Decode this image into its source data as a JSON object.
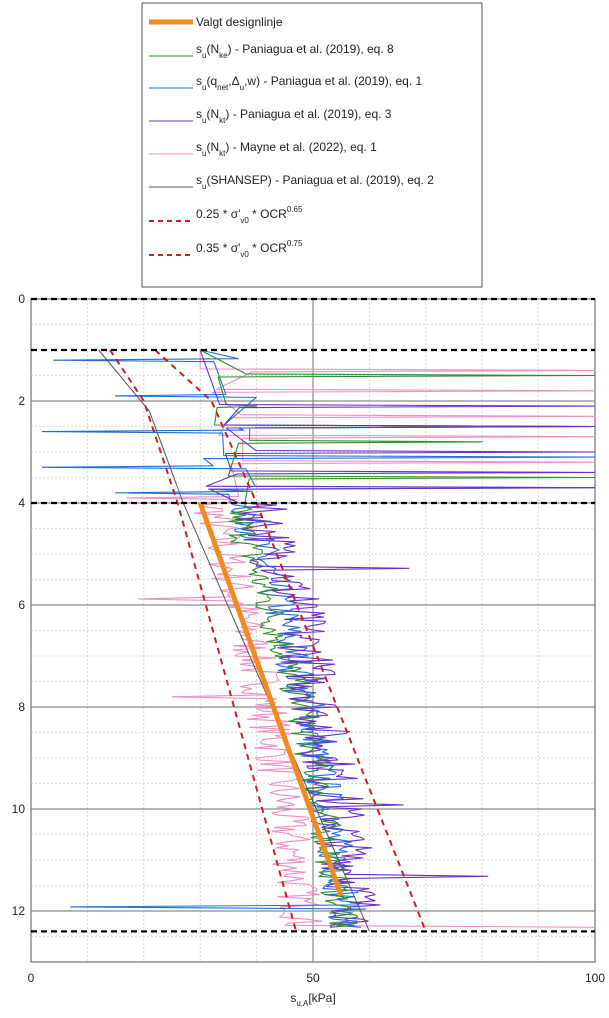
{
  "chart_data": {
    "type": "line",
    "orientation": "depth-down",
    "xlabel": "s",
    "xlabel_sub": "u,A",
    "xlabel_unit": "[kPa]",
    "ylabel": "",
    "xlim": [
      0,
      100
    ],
    "ylim": [
      0,
      13
    ],
    "x_ticks": [
      "0",
      "50",
      "100"
    ],
    "y_ticks": [
      "0",
      "2",
      "4",
      "6",
      "8",
      "10",
      "12"
    ],
    "grid": true,
    "legend_position": "top-center",
    "layer_boundaries": [
      0,
      1.0,
      4.0,
      12.4
    ],
    "legend": [
      {
        "key": "design",
        "color": "#f28a1f",
        "style": "thick",
        "parts": [
          {
            "t": "Valgt designlinje"
          }
        ]
      },
      {
        "key": "nke",
        "color": "#2f8f2f",
        "style": "solid",
        "parts": [
          {
            "t": "s"
          },
          {
            "t": "u",
            "sub": true
          },
          {
            "t": "(N"
          },
          {
            "t": "ke",
            "sub": true
          },
          {
            "t": ") - Paniagua et al. (2019), eq. 8"
          }
        ]
      },
      {
        "key": "qnet",
        "color": "#1f6fd6",
        "style": "solid",
        "parts": [
          {
            "t": "s"
          },
          {
            "t": "u",
            "sub": true
          },
          {
            "t": "(q"
          },
          {
            "t": "net",
            "sub": true
          },
          {
            "t": ","
          },
          {
            "t": "Δ"
          },
          {
            "t": "u",
            "sub": true
          },
          {
            "t": ",w) - Paniagua et al. (2019), eq. 1"
          }
        ]
      },
      {
        "key": "nkt_p",
        "color": "#6b2fc9",
        "style": "solid",
        "parts": [
          {
            "t": "s"
          },
          {
            "t": "u",
            "sub": true
          },
          {
            "t": "(N"
          },
          {
            "t": "kt",
            "sub": true
          },
          {
            "t": ") - Paniagua et al. (2019), eq. 3"
          }
        ]
      },
      {
        "key": "nkt_m",
        "color": "#ef8fc4",
        "style": "solid",
        "parts": [
          {
            "t": "s"
          },
          {
            "t": "u",
            "sub": true
          },
          {
            "t": "(N"
          },
          {
            "t": "kt",
            "sub": true
          },
          {
            "t": ") - Mayne et al. (2022), eq. 1"
          }
        ]
      },
      {
        "key": "shansep",
        "color": "#555555",
        "style": "solid",
        "parts": [
          {
            "t": "s"
          },
          {
            "t": "u",
            "sub": true
          },
          {
            "t": "(SHANSEP) - Paniagua et al. (2019), eq. 2"
          }
        ]
      },
      {
        "key": "low",
        "color": "#cc1f1f",
        "style": "dashed",
        "parts": [
          {
            "t": "0.25 * σ'"
          },
          {
            "t": "v0",
            "sub": true
          },
          {
            "t": " * OCR"
          },
          {
            "t": "0.65",
            "sup": true
          }
        ]
      },
      {
        "key": "high",
        "color": "#cc1f1f",
        "style": "dashed",
        "parts": [
          {
            "t": "0.35 * σ'"
          },
          {
            "t": "v0",
            "sub": true
          },
          {
            "t": " * OCR"
          },
          {
            "t": "0.75",
            "sup": true
          }
        ]
      }
    ],
    "series": [
      {
        "key": "design",
        "color": "#f28a1f",
        "width": 5,
        "dash": "",
        "x": [
          30,
          55
        ],
        "y": [
          4.0,
          11.7
        ]
      },
      {
        "key": "low",
        "color": "#cc1f1f",
        "width": 2,
        "dash": "6,5",
        "x": [
          14,
          20,
          26,
          47
        ],
        "y": [
          1.0,
          2.0,
          4.0,
          12.4
        ]
      },
      {
        "key": "high",
        "color": "#cc1f1f",
        "width": 2,
        "dash": "6,5",
        "x": [
          22,
          32,
          40,
          70
        ],
        "y": [
          1.0,
          2.0,
          4.0,
          12.4
        ]
      },
      {
        "key": "shansep",
        "color": "#555555",
        "width": 1,
        "dash": "",
        "x": [
          12,
          21,
          27,
          60
        ],
        "y": [
          1.0,
          2.2,
          4.0,
          12.4
        ]
      },
      {
        "key": "nke",
        "color": "#2f8f2f",
        "width": 1.1,
        "dash": "",
        "noisy": true,
        "base_x": [
          36,
          42,
          48,
          55
        ],
        "base_y": [
          4.0,
          6.0,
          8.0,
          12.0
        ],
        "amp": 3,
        "spikes": [
          {
            "y": 1.5,
            "x": 100
          },
          {
            "y": 2.1,
            "x": 40
          },
          {
            "y": 2.5,
            "x": 100
          },
          {
            "y": 2.8,
            "x": 80
          },
          {
            "y": 3.5,
            "x": 100
          }
        ]
      },
      {
        "key": "qnet",
        "color": "#1f6fd6",
        "width": 1.1,
        "dash": "",
        "noisy": true,
        "base_x": [
          38,
          44,
          49,
          56
        ],
        "base_y": [
          4.0,
          6.0,
          8.0,
          12.0
        ],
        "amp": 3.5,
        "spikes": [
          {
            "y": 1.2,
            "x": 4
          },
          {
            "y": 1.9,
            "x": 15
          },
          {
            "y": 2.5,
            "x": 100
          },
          {
            "y": 2.6,
            "x": 2
          },
          {
            "y": 3.1,
            "x": 100
          },
          {
            "y": 3.3,
            "x": 2
          },
          {
            "y": 3.7,
            "x": 100
          },
          {
            "y": 3.8,
            "x": 15
          },
          {
            "y": 11.9,
            "x": 7
          }
        ]
      },
      {
        "key": "nkt_p",
        "color": "#6b2fc9",
        "width": 1.1,
        "dash": "",
        "noisy": true,
        "base_x": [
          40,
          47,
          51,
          58
        ],
        "base_y": [
          4.0,
          6.0,
          8.0,
          12.0
        ],
        "amp": 5,
        "spikes": [
          {
            "y": 2.1,
            "x": 100
          },
          {
            "y": 2.5,
            "x": 100
          },
          {
            "y": 3.0,
            "x": 100
          },
          {
            "y": 3.4,
            "x": 100
          },
          {
            "y": 3.7,
            "x": 100
          },
          {
            "y": 5.3,
            "x": 67
          },
          {
            "y": 5.9,
            "x": 51
          },
          {
            "y": 9.9,
            "x": 66
          },
          {
            "y": 11.3,
            "x": 81
          }
        ]
      },
      {
        "key": "nkt_m",
        "color": "#ef8fc4",
        "width": 1.1,
        "dash": "",
        "noisy": true,
        "base_x": [
          32,
          37,
          42,
          48
        ],
        "base_y": [
          4.0,
          6.0,
          8.0,
          12.0
        ],
        "amp": 4,
        "spikes": [
          {
            "y": 1.4,
            "x": 100
          },
          {
            "y": 1.8,
            "x": 100
          },
          {
            "y": 2.3,
            "x": 100
          },
          {
            "y": 2.7,
            "x": 100
          },
          {
            "y": 3.2,
            "x": 100
          },
          {
            "y": 3.9,
            "x": 17
          },
          {
            "y": 5.9,
            "x": 19
          },
          {
            "y": 7.8,
            "x": 25
          },
          {
            "y": 12.3,
            "x": 100
          }
        ]
      }
    ]
  }
}
